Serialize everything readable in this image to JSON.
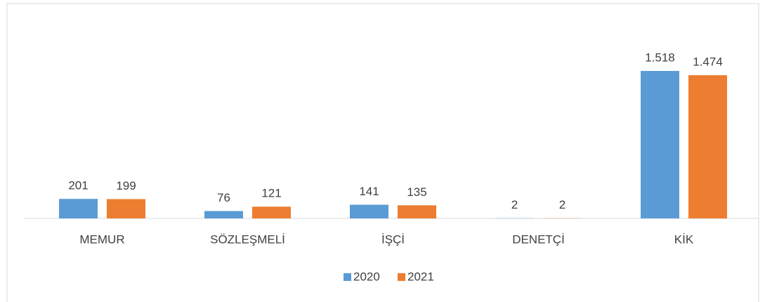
{
  "chart_data": {
    "type": "bar",
    "categories": [
      "MEMUR",
      "SÖZLEŞMELİ",
      "İŞÇİ",
      "DENETÇİ",
      "KİK"
    ],
    "series": [
      {
        "name": "2020",
        "color": "#5b9bd5",
        "values": [
          201,
          76,
          141,
          2,
          1518
        ],
        "value_labels": [
          "201",
          "76",
          "141",
          "2",
          "1.518"
        ]
      },
      {
        "name": "2021",
        "color": "#ed7d31",
        "values": [
          199,
          121,
          135,
          2,
          1474
        ],
        "value_labels": [
          "199",
          "121",
          "135",
          "2",
          "1.474"
        ]
      }
    ],
    "legend": "bottom"
  }
}
